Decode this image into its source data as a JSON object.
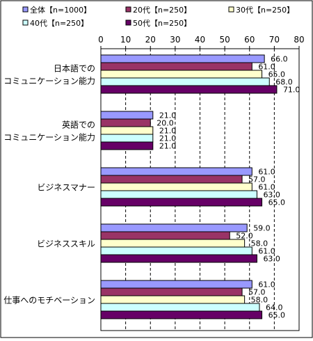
{
  "chart_data": {
    "type": "bar",
    "orientation": "horizontal",
    "categories": [
      [
        "日本語での",
        "コミュニケーション能力"
      ],
      [
        "英語での",
        "コミュニケーション能力"
      ],
      [
        "ビジネスマナー"
      ],
      [
        "ビジネススキル"
      ],
      [
        "仕事へのモチベーション"
      ]
    ],
    "series": [
      {
        "name": "全体【n=1000】",
        "color": "#9999ff",
        "values": [
          66.0,
          21.0,
          61.0,
          59.0,
          61.0
        ]
      },
      {
        "name": "20代【n=250】",
        "color": "#993366",
        "values": [
          61.0,
          20.0,
          57.0,
          52.0,
          57.0
        ]
      },
      {
        "name": "30代【n=250】",
        "color": "#ffffcc",
        "values": [
          65.0,
          21.0,
          61.0,
          58.0,
          58.0
        ]
      },
      {
        "name": "40代【n=250】",
        "color": "#ccffff",
        "values": [
          68.0,
          21.0,
          63.0,
          61.0,
          64.0
        ]
      },
      {
        "name": "50代【n=250】",
        "color": "#660066",
        "values": [
          71.0,
          21.0,
          65.0,
          63.0,
          65.0
        ]
      }
    ],
    "xlim": [
      0,
      80
    ],
    "xticks": [
      0,
      10,
      20,
      30,
      40,
      50,
      60,
      70,
      80
    ],
    "grid": "vertical-dashed",
    "legend_position": "top",
    "title": "",
    "xlabel": "",
    "ylabel": ""
  }
}
